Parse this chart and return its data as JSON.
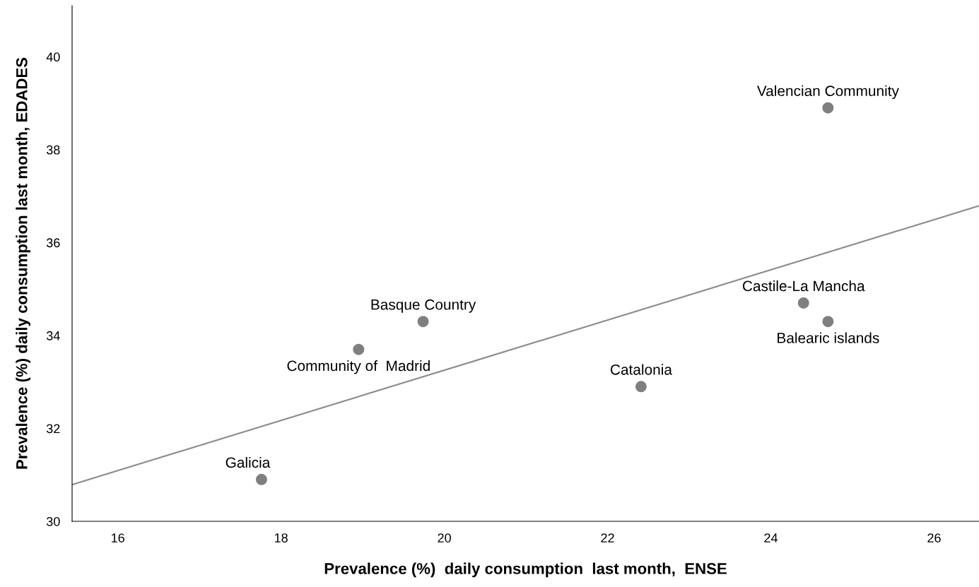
{
  "chart_data": {
    "type": "scatter",
    "xlabel": "Prevalence (%)  daily consumption  last month,  ENSE",
    "ylabel": "Prevalence (%) daily consumption last month, EDADES",
    "xlim": [
      15.44,
      26.55
    ],
    "xticks": [
      16,
      18,
      20,
      22,
      24,
      26
    ],
    "ylim": [
      30,
      41.1
    ],
    "yticks": [
      30,
      32,
      34,
      36,
      38,
      40
    ],
    "grid": false,
    "legend": false,
    "series": [
      {
        "marker": "circle",
        "color": "#7f7f7f",
        "x": [
          24.7,
          24.4,
          24.7,
          19.74,
          18.95,
          22.41,
          17.76
        ],
        "values": [
          38.9,
          34.7,
          34.3,
          34.3,
          33.7,
          32.9,
          30.9
        ]
      },
      {
        "type": "line",
        "color": "#8c8c8c",
        "x": [
          15.44,
          26.55
        ],
        "values": [
          30.79,
          36.79
        ]
      }
    ],
    "annotations": [
      {
        "text": "Valencian Community",
        "x": 24.7,
        "y": 38.9
      },
      {
        "text": "Castile-La Mancha",
        "x": 24.4,
        "y": 34.7
      },
      {
        "text": "Balearic islands",
        "x": 24.7,
        "y": 34.3
      },
      {
        "text": "Basque Country",
        "x": 19.74,
        "y": 34.3
      },
      {
        "text": "Community of  Madrid",
        "x": 18.95,
        "y": 33.7
      },
      {
        "text": "Catalonia",
        "x": 22.41,
        "y": 32.9
      },
      {
        "text": "Galicia",
        "x": 17.76,
        "y": 30.9
      }
    ]
  }
}
